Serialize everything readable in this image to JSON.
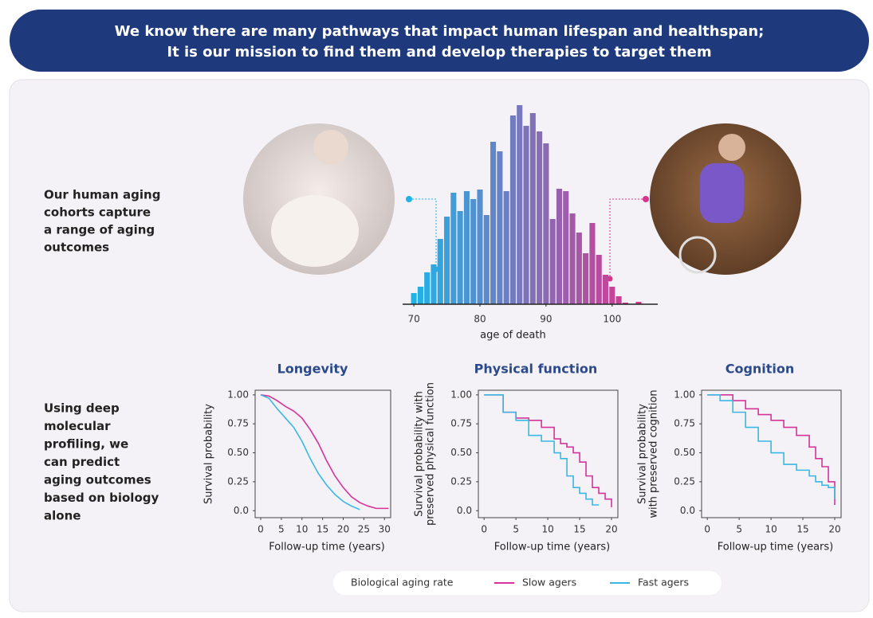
{
  "header": [
    "We know there are many pathways that impact human lifespan and healthspan;",
    "It is our mission to find them and develop therapies to target them"
  ],
  "left_text_top": [
    "Our human aging",
    "cohorts capture",
    "a range of aging",
    "outcomes"
  ],
  "left_text_bottom": [
    "Using deep",
    "molecular",
    "profiling, we",
    "can predict",
    "aging outcomes",
    "based on biology",
    "alone"
  ],
  "chart_data": [
    {
      "type": "histogram",
      "xlabel": "age of death",
      "bins": [
        69.5,
        70.5,
        71.5,
        72.5,
        73.5,
        74.5,
        75.5,
        76.5,
        77.5,
        78.5,
        79.5,
        80.5,
        81.5,
        82.5,
        83.5,
        84.5,
        85.5,
        86.5,
        87.5,
        88.5,
        89.5,
        90.5,
        91.5,
        92.5,
        93.5,
        94.5,
        95.5,
        96.5,
        97.5,
        98.5,
        99.5,
        100.5,
        101.5,
        102.5,
        103.5,
        104.5
      ],
      "values": [
        14,
        22,
        40,
        50,
        82,
        110,
        140,
        117,
        142,
        132,
        144,
        112,
        204,
        192,
        142,
        237,
        250,
        224,
        240,
        217,
        202,
        107,
        145,
        142,
        114,
        90,
        64,
        102,
        62,
        37,
        22,
        10,
        2,
        0,
        3
      ],
      "color_start": "#1fb3e8",
      "color_end": "#d9358e",
      "xlim": [
        68.3,
        106.9
      ],
      "xticks": [
        70,
        80,
        90,
        100
      ],
      "ylim": [
        0,
        260
      ]
    },
    {
      "type": "line",
      "title": "Longevity",
      "ylabel": [
        "Survival probability"
      ],
      "xlabel": "Follow-up time (years)",
      "legend_title": "Biological aging rate",
      "step": false,
      "x": [
        0,
        2,
        4,
        6,
        8,
        10,
        12,
        14,
        16,
        18,
        20,
        22,
        24,
        26,
        28,
        30,
        31
      ],
      "series": [
        {
          "name": "Slow agers",
          "color": "#d4349a",
          "values": [
            1,
            0.99,
            0.95,
            0.9,
            0.86,
            0.8,
            0.7,
            0.58,
            0.43,
            0.3,
            0.2,
            0.12,
            0.07,
            0.04,
            0.02,
            0.02,
            0.02
          ]
        },
        {
          "name": "Fast agers",
          "color": "#3ab7e4",
          "values": [
            1,
            0.97,
            0.88,
            0.8,
            0.72,
            0.6,
            0.45,
            0.32,
            0.22,
            0.14,
            0.08,
            0.04,
            0.01,
            null,
            null,
            null,
            null
          ]
        }
      ],
      "xlim": [
        -1.35,
        31.5
      ],
      "xticks": [
        0,
        5,
        10,
        15,
        20,
        25,
        30
      ],
      "ylim": [
        -0.06,
        1.04
      ],
      "yticks": [
        {
          "value": 1,
          "label": "1.00"
        },
        0.75,
        {
          "value": 0.5,
          "label": "0.50"
        },
        0.25,
        {
          "value": 0,
          "label": "0.0"
        }
      ]
    },
    {
      "type": "line",
      "title": "Physical function",
      "ylabel": [
        "Survival probability with",
        "preserved physical function"
      ],
      "xlabel": "Follow-up time (years)",
      "step": true,
      "x": [
        0,
        3,
        5,
        7,
        9,
        11,
        12,
        13,
        14,
        15,
        16,
        17,
        18,
        19,
        20
      ],
      "series": [
        {
          "color": "#d4349a",
          "values": [
            1,
            0.85,
            0.8,
            0.78,
            0.72,
            0.62,
            0.58,
            0.55,
            0.5,
            0.42,
            0.3,
            0.2,
            0.15,
            0.1,
            0.03
          ]
        },
        {
          "color": "#3ab7e4",
          "values": [
            1,
            0.85,
            0.78,
            0.65,
            0.6,
            0.5,
            0.45,
            0.3,
            0.2,
            0.15,
            0.1,
            0.05,
            0.05,
            null,
            null
          ]
        }
      ],
      "xlim": [
        -0.9,
        21
      ],
      "xticks": [
        0,
        5,
        10,
        15,
        20
      ],
      "ylim": [
        -0.06,
        1.04
      ],
      "yticks": [
        {
          "value": 1,
          "label": "1.00"
        },
        0.75,
        {
          "value": 0.5,
          "label": "0.50"
        },
        0.25,
        {
          "value": 0,
          "label": "0.0"
        }
      ]
    },
    {
      "type": "line",
      "title": "Cognition",
      "ylabel": [
        "Survival probability",
        "with preserved cognition"
      ],
      "xlabel": "Follow-up time (years)",
      "step": true,
      "x": [
        0,
        2,
        4,
        6,
        8,
        10,
        12,
        14,
        16,
        17,
        18,
        19,
        20
      ],
      "series": [
        {
          "color": "#d4349a",
          "values": [
            1,
            1,
            0.95,
            0.88,
            0.83,
            0.78,
            0.72,
            0.65,
            0.55,
            0.45,
            0.38,
            0.25,
            0.05
          ]
        },
        {
          "color": "#3ab7e4",
          "values": [
            1,
            0.95,
            0.85,
            0.72,
            0.6,
            0.5,
            0.4,
            0.35,
            0.3,
            0.25,
            0.22,
            0.2,
            0.1
          ]
        }
      ],
      "xlim": [
        -0.9,
        21
      ],
      "xticks": [
        0,
        5,
        10,
        15,
        20
      ],
      "ylim": [
        -0.06,
        1.04
      ],
      "yticks": [
        {
          "value": 1,
          "label": "1.00"
        },
        0.75,
        {
          "value": 0.5,
          "label": "0.50"
        },
        0.25,
        {
          "value": 0,
          "label": "0.0"
        }
      ]
    }
  ]
}
